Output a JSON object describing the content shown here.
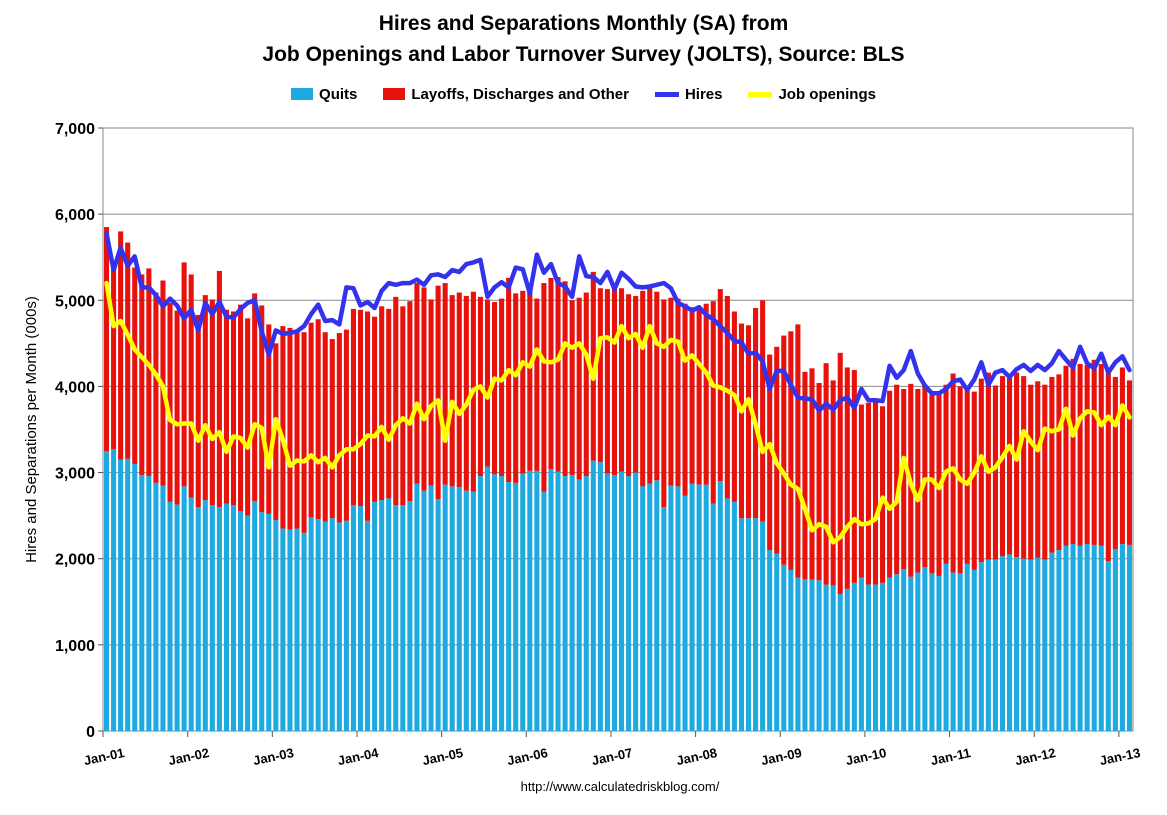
{
  "title_line1": "Hires and Separations Monthly (SA) from",
  "title_line2": "Job Openings and Labor Turnover Survey (JOLTS), Source: BLS",
  "footer": "http://www.calculatedriskblog.com/",
  "colors": {
    "quits": "#1fa9e1",
    "layoffs": "#e8120c",
    "hires": "#3333ee",
    "openings": "#ffff00"
  },
  "legend": {
    "quits": "Quits",
    "layoffs": "Layoffs, Discharges and Other",
    "hires": "Hires",
    "openings": "Job openings"
  },
  "chart_data": {
    "type": "bar",
    "title": "Hires and Separations Monthly (SA) from Job Openings and Labor Turnover Survey (JOLTS), Source: BLS",
    "ylabel": "Hires and Separations per Month (000s)",
    "xlabel": "",
    "ylim": [
      0,
      7000
    ],
    "yticks": [
      0,
      1000,
      2000,
      3000,
      4000,
      5000,
      6000,
      7000
    ],
    "ytick_labels": [
      "0",
      "1,000",
      "2,000",
      "3,000",
      "4,000",
      "5,000",
      "6,000",
      "7,000"
    ],
    "xtick_labels": [
      "Jan-01",
      "Jan-02",
      "Jan-03",
      "Jan-04",
      "Jan-05",
      "Jan-06",
      "Jan-07",
      "Jan-08",
      "Jan-09",
      "Jan-10",
      "Jan-11",
      "Jan-12",
      "Jan-13"
    ],
    "start": "Jan-01",
    "stacked": true,
    "series": [
      {
        "name": "Quits",
        "kind": "bar",
        "values": [
          3250,
          3270,
          3150,
          3160,
          3100,
          2970,
          2960,
          2880,
          2850,
          2660,
          2630,
          2840,
          2710,
          2600,
          2680,
          2620,
          2600,
          2640,
          2620,
          2550,
          2500,
          2670,
          2540,
          2520,
          2450,
          2350,
          2340,
          2350,
          2300,
          2480,
          2460,
          2430,
          2470,
          2420,
          2440,
          2620,
          2610,
          2440,
          2660,
          2680,
          2700,
          2620,
          2620,
          2670,
          2870,
          2790,
          2850,
          2690,
          2860,
          2840,
          2830,
          2790,
          2780,
          2960,
          3070,
          2980,
          2960,
          2890,
          2880,
          2990,
          3020,
          3020,
          2780,
          3040,
          3010,
          2960,
          2970,
          2920,
          2960,
          3140,
          3120,
          2990,
          2970,
          3010,
          2960,
          3000,
          2840,
          2870,
          2910,
          2600,
          2850,
          2840,
          2730,
          2870,
          2860,
          2860,
          2640,
          2900,
          2700,
          2660,
          2470,
          2470,
          2470,
          2430,
          2100,
          2060,
          1930,
          1870,
          1780,
          1760,
          1760,
          1750,
          1700,
          1690,
          1590,
          1650,
          1720,
          1780,
          1700,
          1700,
          1720,
          1780,
          1820,
          1880,
          1790,
          1840,
          1900,
          1830,
          1800,
          1940,
          1840,
          1830,
          1940,
          1870,
          1960,
          1990,
          1990,
          2030,
          2050,
          2020,
          2000,
          1990,
          2010,
          1990,
          2070,
          2100,
          2150,
          2170,
          2150,
          2170,
          2160,
          2150,
          1970,
          2110,
          2170,
          2160
        ]
      },
      {
        "name": "Layoffs, Discharges and Other",
        "kind": "bar",
        "values": [
          2600,
          2100,
          2650,
          2510,
          2280,
          2330,
          2410,
          2210,
          2380,
          2310,
          2250,
          2600,
          2590,
          2230,
          2380,
          2390,
          2740,
          2250,
          2250,
          2400,
          2290,
          2410,
          2400,
          2200,
          2050,
          2350,
          2340,
          2300,
          2330,
          2260,
          2320,
          2200,
          2080,
          2200,
          2220,
          2280,
          2280,
          2430,
          2150,
          2250,
          2200,
          2420,
          2310,
          2320,
          2330,
          2360,
          2160,
          2480,
          2340,
          2220,
          2260,
          2260,
          2320,
          2080,
          1940,
          2000,
          2060,
          2370,
          2200,
          2120,
          2160,
          2000,
          2420,
          2220,
          2260,
          2260,
          2030,
          2110,
          2130,
          2190,
          2020,
          2140,
          2200,
          2130,
          2110,
          2050,
          2270,
          2280,
          2190,
          2410,
          2180,
          2180,
          2230,
          2050,
          2050,
          2100,
          2350,
          2230,
          2350,
          2210,
          2260,
          2240,
          2440,
          2570,
          2270,
          2400,
          2660,
          2770,
          2940,
          2410,
          2450,
          2290,
          2570,
          2380,
          2800,
          2570,
          2470,
          2010,
          2110,
          2120,
          2050,
          2170,
          2200,
          2090,
          2240,
          2130,
          2120,
          2110,
          2120,
          2080,
          2310,
          2170,
          2070,
          2070,
          2130,
          2170,
          2020,
          2090,
          2050,
          2140,
          2120,
          2030,
          2050,
          2030,
          2040,
          2040,
          2090,
          2150,
          2110,
          2080,
          2150,
          2110,
          2190,
          2000,
          2050,
          1910
        ]
      },
      {
        "name": "Hires",
        "kind": "line",
        "values": [
          5780,
          5350,
          5610,
          5400,
          5510,
          5150,
          5150,
          5060,
          4930,
          5020,
          4940,
          4790,
          4890,
          4650,
          4970,
          4840,
          4980,
          4810,
          4800,
          4900,
          4970,
          5000,
          4640,
          4370,
          4650,
          4610,
          4620,
          4640,
          4700,
          4840,
          4950,
          4760,
          4770,
          4720,
          5150,
          5140,
          4940,
          4980,
          4910,
          5110,
          5200,
          5180,
          5200,
          5200,
          5240,
          5180,
          5290,
          5300,
          5270,
          5350,
          5330,
          5420,
          5440,
          5470,
          5040,
          5150,
          5210,
          5150,
          5380,
          5360,
          5080,
          5530,
          5320,
          5420,
          5200,
          5160,
          5040,
          5510,
          5280,
          5270,
          5200,
          5330,
          5130,
          5320,
          5250,
          5160,
          5150,
          5160,
          5180,
          5200,
          5140,
          4970,
          4930,
          4880,
          4920,
          4830,
          4780,
          4700,
          4620,
          4530,
          4510,
          4380,
          4390,
          4290,
          3970,
          4180,
          4180,
          4020,
          3870,
          3860,
          3850,
          3720,
          3800,
          3730,
          3840,
          3870,
          3750,
          3970,
          3840,
          3840,
          3830,
          4240,
          4100,
          4190,
          4410,
          4150,
          4010,
          3920,
          3920,
          3970,
          4060,
          4080,
          3960,
          4080,
          4280,
          4020,
          4160,
          4190,
          4110,
          4200,
          4250,
          4180,
          4250,
          4190,
          4270,
          4410,
          4310,
          4220,
          4460,
          4270,
          4210,
          4380,
          4160,
          4280,
          4350,
          4190
        ]
      },
      {
        "name": "Job openings",
        "kind": "line",
        "values": [
          5200,
          4700,
          4760,
          4600,
          4430,
          4340,
          4250,
          4140,
          4000,
          3610,
          3560,
          3570,
          3570,
          3370,
          3550,
          3390,
          3470,
          3240,
          3420,
          3400,
          3290,
          3560,
          3520,
          3060,
          3620,
          3380,
          3080,
          3140,
          3130,
          3200,
          3120,
          3170,
          3060,
          3200,
          3270,
          3270,
          3330,
          3430,
          3420,
          3530,
          3380,
          3550,
          3630,
          3570,
          3800,
          3620,
          3770,
          3840,
          3370,
          3820,
          3680,
          3790,
          3960,
          4000,
          3870,
          4090,
          4070,
          4190,
          4130,
          4280,
          4230,
          4430,
          4290,
          4280,
          4310,
          4500,
          4450,
          4500,
          4370,
          4090,
          4560,
          4570,
          4510,
          4700,
          4560,
          4610,
          4450,
          4700,
          4500,
          4460,
          4540,
          4520,
          4300,
          4360,
          4260,
          4160,
          4010,
          3990,
          3950,
          3900,
          3710,
          3850,
          3560,
          3240,
          3330,
          3110,
          2990,
          2860,
          2810,
          2580,
          2330,
          2400,
          2370,
          2190,
          2250,
          2370,
          2460,
          2400,
          2410,
          2460,
          2710,
          2580,
          2660,
          3170,
          2870,
          2680,
          2920,
          2920,
          2820,
          3010,
          3050,
          2920,
          2870,
          3000,
          3190,
          3010,
          3060,
          3180,
          3310,
          3150,
          3480,
          3360,
          3260,
          3510,
          3480,
          3500,
          3740,
          3430,
          3630,
          3710,
          3700,
          3550,
          3650,
          3550,
          3780,
          3640
        ]
      }
    ]
  }
}
